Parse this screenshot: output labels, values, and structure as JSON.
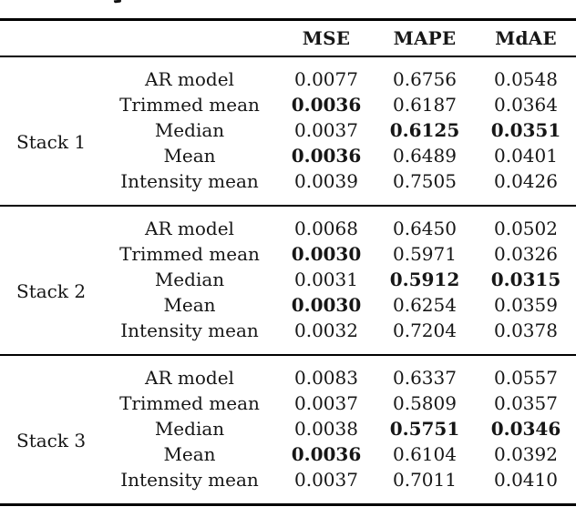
{
  "colors": {
    "background": "#ffffff",
    "text": "#161616",
    "rule": "#000000"
  },
  "table": {
    "headers": {
      "mse": "MSE",
      "mape": "MAPE",
      "mdae": "MdAE"
    },
    "stacks": [
      {
        "label": "Stack 1",
        "rows": [
          {
            "method": "AR model",
            "mse": "0.0077",
            "mape": "0.6756",
            "mdae": "0.0548",
            "bold": []
          },
          {
            "method": "Trimmed mean",
            "mse": "0.0036",
            "mape": "0.6187",
            "mdae": "0.0364",
            "bold": [
              "mse"
            ]
          },
          {
            "method": "Median",
            "mse": "0.0037",
            "mape": "0.6125",
            "mdae": "0.0351",
            "bold": [
              "mape",
              "mdae"
            ]
          },
          {
            "method": "Mean",
            "mse": "0.0036",
            "mape": "0.6489",
            "mdae": "0.0401",
            "bold": [
              "mse"
            ]
          },
          {
            "method": "Intensity mean",
            "mse": "0.0039",
            "mape": "0.7505",
            "mdae": "0.0426",
            "bold": []
          }
        ]
      },
      {
        "label": "Stack 2",
        "rows": [
          {
            "method": "AR model",
            "mse": "0.0068",
            "mape": "0.6450",
            "mdae": "0.0502",
            "bold": []
          },
          {
            "method": "Trimmed mean",
            "mse": "0.0030",
            "mape": "0.5971",
            "mdae": "0.0326",
            "bold": [
              "mse"
            ]
          },
          {
            "method": "Median",
            "mse": "0.0031",
            "mape": "0.5912",
            "mdae": "0.0315",
            "bold": [
              "mape",
              "mdae"
            ]
          },
          {
            "method": "Mean",
            "mse": "0.0030",
            "mape": "0.6254",
            "mdae": "0.0359",
            "bold": [
              "mse"
            ]
          },
          {
            "method": "Intensity mean",
            "mse": "0.0032",
            "mape": "0.7204",
            "mdae": "0.0378",
            "bold": []
          }
        ]
      },
      {
        "label": "Stack 3",
        "rows": [
          {
            "method": "AR model",
            "mse": "0.0083",
            "mape": "0.6337",
            "mdae": "0.0557",
            "bold": []
          },
          {
            "method": "Trimmed mean",
            "mse": "0.0037",
            "mape": "0.5809",
            "mdae": "0.0357",
            "bold": []
          },
          {
            "method": "Median",
            "mse": "0.0038",
            "mape": "0.5751",
            "mdae": "0.0346",
            "bold": [
              "mape",
              "mdae"
            ]
          },
          {
            "method": "Mean",
            "mse": "0.0036",
            "mape": "0.6104",
            "mdae": "0.0392",
            "bold": [
              "mse"
            ]
          },
          {
            "method": "Intensity mean",
            "mse": "0.0037",
            "mape": "0.7011",
            "mdae": "0.0410",
            "bold": []
          }
        ]
      }
    ]
  }
}
